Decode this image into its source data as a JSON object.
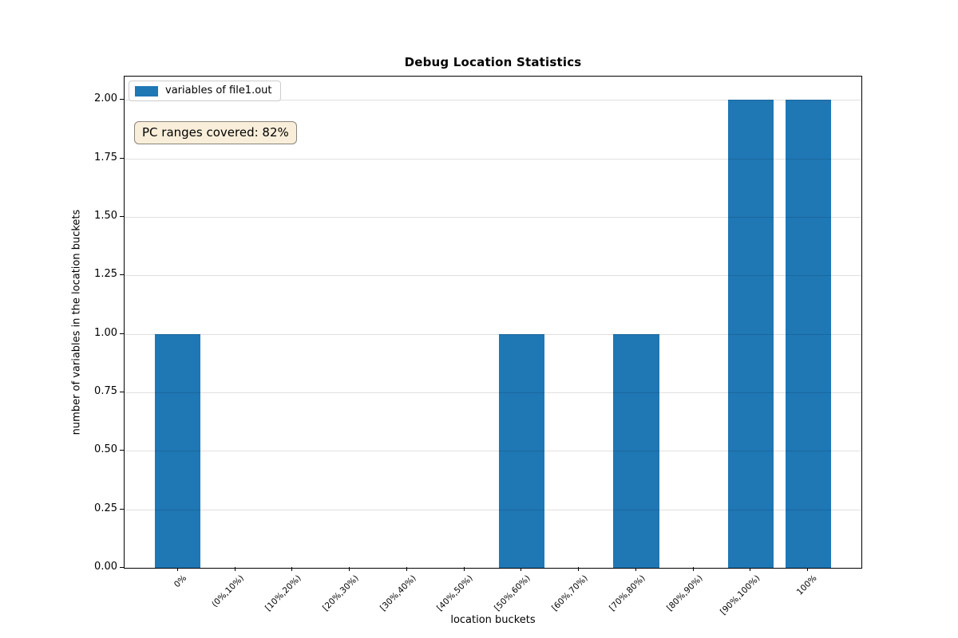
{
  "title": "Debug Location Statistics",
  "annotation": {
    "text": "PC ranges covered: 82%",
    "bg_color": "#f9eed9",
    "border_color": "#8a857c"
  },
  "legend": {
    "label": "variables of file1.out",
    "swatch_color": "#1f77b4",
    "position": "upper-left"
  },
  "chart_data": {
    "type": "bar",
    "title": "Debug Location Statistics",
    "xlabel": "location buckets",
    "ylabel": "number of variables in the location buckets",
    "categories": [
      "0%",
      "(0%,10%)",
      "[10%,20%)",
      "[20%,30%)",
      "[30%,40%)",
      "[40%,50%)",
      "[50%,60%)",
      "[60%,70%)",
      "[70%,80%)",
      "[80%,90%)",
      "[90%,100%)",
      "100%"
    ],
    "series": [
      {
        "name": "variables of file1.out",
        "values": [
          1,
          0,
          0,
          0,
          0,
          0,
          1,
          0,
          1,
          0,
          2,
          2
        ]
      }
    ],
    "bar_color": "#1f77b4",
    "ylim": [
      0,
      2.1
    ],
    "yticks": [
      0.0,
      0.25,
      0.5,
      0.75,
      1.0,
      1.25,
      1.5,
      1.75,
      2.0
    ],
    "ytick_format_decimals": 2,
    "grid": "y",
    "grid_over_bars": true,
    "legend_position": "upper-left",
    "xtick_rotation_deg": 45
  }
}
